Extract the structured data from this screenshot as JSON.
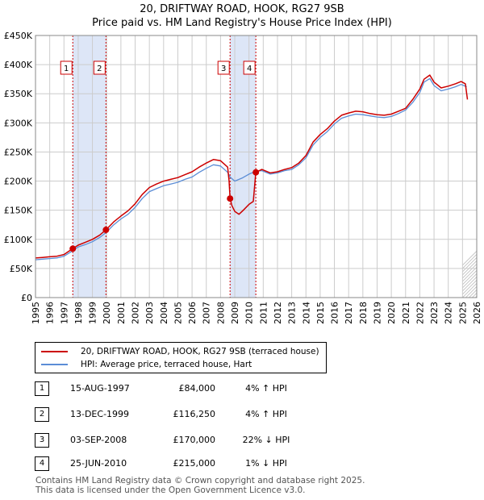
{
  "title_line1": "20, DRIFTWAY ROAD, HOOK, RG27 9SB",
  "title_line2": "Price paid vs. HM Land Registry's House Price Index (HPI)",
  "colors": {
    "property": "#cc0000",
    "hpi": "#5b8dd6",
    "shade": "#dde6f7",
    "grid": "#cccccc"
  },
  "legend": {
    "property_label": "20, DRIFTWAY ROAD, HOOK, RG27 9SB (terraced house)",
    "hpi_label": "HPI: Average price, terraced house, Hart"
  },
  "transactions": [
    {
      "num": "1",
      "date": "15-AUG-1997",
      "price": "£84,000",
      "delta": "4% ↑ HPI"
    },
    {
      "num": "2",
      "date": "13-DEC-1999",
      "price": "£116,250",
      "delta": "4% ↑ HPI"
    },
    {
      "num": "3",
      "date": "03-SEP-2008",
      "price": "£170,000",
      "delta": "22% ↓ HPI"
    },
    {
      "num": "4",
      "date": "25-JUN-2010",
      "price": "£215,000",
      "delta": "1% ↓ HPI"
    }
  ],
  "footer": {
    "line1": "Contains HM Land Registry data © Crown copyright and database right 2025.",
    "line2": "This data is licensed under the Open Government Licence v3.0."
  },
  "chart_data": {
    "type": "line",
    "title": "20, DRIFTWAY ROAD, HOOK, RG27 9SB — Price paid vs. HM Land Registry's House Price Index (HPI)",
    "xlabel": "",
    "ylabel": "",
    "xlim": [
      1995,
      2026
    ],
    "ylim": [
      0,
      450000
    ],
    "x_ticks": [
      1995,
      1996,
      1997,
      1998,
      1999,
      2000,
      2001,
      2002,
      2003,
      2004,
      2005,
      2006,
      2007,
      2008,
      2009,
      2010,
      2011,
      2012,
      2013,
      2014,
      2015,
      2016,
      2017,
      2018,
      2019,
      2020,
      2021,
      2022,
      2023,
      2024,
      2025,
      2026
    ],
    "y_ticks": [
      {
        "value": 0,
        "label": "£0"
      },
      {
        "value": 50000,
        "label": "£50K"
      },
      {
        "value": 100000,
        "label": "£100K"
      },
      {
        "value": 150000,
        "label": "£150K"
      },
      {
        "value": 200000,
        "label": "£200K"
      },
      {
        "value": 250000,
        "label": "£250K"
      },
      {
        "value": 300000,
        "label": "£300K"
      },
      {
        "value": 350000,
        "label": "£350K"
      },
      {
        "value": 400000,
        "label": "£400K"
      },
      {
        "value": 450000,
        "label": "£450K"
      }
    ],
    "grid": true,
    "shaded_periods": [
      [
        1997.62,
        1999.95
      ],
      [
        2008.67,
        2010.48
      ]
    ],
    "sale_markers": [
      {
        "label": "1",
        "x": 1997.62,
        "y": 84000
      },
      {
        "label": "2",
        "x": 1999.95,
        "y": 116250
      },
      {
        "label": "3",
        "x": 2008.67,
        "y": 170000
      },
      {
        "label": "4",
        "x": 2010.48,
        "y": 215000
      }
    ],
    "forecast_from": 2025.0,
    "series": [
      {
        "name": "HPI: Average price, terraced house, Hart",
        "x": [
          1995.0,
          1995.5,
          1996.0,
          1996.5,
          1997.0,
          1997.62,
          1998.0,
          1998.5,
          1999.0,
          1999.5,
          1999.95,
          2000.5,
          2001.0,
          2001.5,
          2002.0,
          2002.5,
          2003.0,
          2003.5,
          2004.0,
          2004.5,
          2005.0,
          2005.5,
          2006.0,
          2006.5,
          2007.0,
          2007.5,
          2008.0,
          2008.5,
          2008.67,
          2009.0,
          2009.5,
          2010.0,
          2010.48,
          2010.9,
          2011.5,
          2012.0,
          2012.5,
          2013.0,
          2013.5,
          2014.0,
          2014.5,
          2015.0,
          2015.5,
          2016.0,
          2016.5,
          2017.0,
          2017.5,
          2018.0,
          2018.5,
          2019.0,
          2019.5,
          2020.0,
          2020.5,
          2021.0,
          2021.5,
          2022.0,
          2022.3,
          2022.7,
          2023.0,
          2023.5,
          2024.0,
          2024.5,
          2024.9,
          2025.3
        ],
        "y": [
          65000,
          66000,
          67000,
          68000,
          71000,
          80500,
          87000,
          91000,
          96000,
          103000,
          111500,
          125000,
          135000,
          143000,
          155000,
          170000,
          182000,
          187000,
          192000,
          195000,
          198000,
          203000,
          207000,
          215000,
          222000,
          228000,
          226000,
          215000,
          207000,
          200000,
          205000,
          212000,
          217000,
          218000,
          212000,
          214000,
          218000,
          220000,
          228000,
          240000,
          262000,
          275000,
          285000,
          298000,
          308000,
          312000,
          315000,
          314000,
          312000,
          310000,
          309000,
          311000,
          316000,
          322000,
          335000,
          352000,
          370000,
          376000,
          364000,
          355000,
          358000,
          362000,
          366000,
          362000
        ]
      },
      {
        "name": "20, DRIFTWAY ROAD, HOOK, RG27 9SB (terraced house)",
        "x": [
          1995.0,
          1995.5,
          1996.0,
          1996.5,
          1997.0,
          1997.62,
          1998.0,
          1998.5,
          1999.0,
          1999.5,
          1999.95,
          2000.5,
          2001.0,
          2001.5,
          2002.0,
          2002.5,
          2003.0,
          2003.5,
          2004.0,
          2004.5,
          2005.0,
          2005.5,
          2006.0,
          2006.5,
          2007.0,
          2007.5,
          2008.0,
          2008.5,
          2008.6,
          2008.67,
          2008.8,
          2009.0,
          2009.3,
          2009.6,
          2010.0,
          2010.3,
          2010.48,
          2010.9,
          2011.5,
          2012.0,
          2012.5,
          2013.0,
          2013.5,
          2014.0,
          2014.5,
          2015.0,
          2015.5,
          2016.0,
          2016.5,
          2017.0,
          2017.5,
          2018.0,
          2018.5,
          2019.0,
          2019.5,
          2020.0,
          2020.5,
          2021.0,
          2021.5,
          2022.0,
          2022.3,
          2022.7,
          2023.0,
          2023.5,
          2024.0,
          2024.5,
          2024.9,
          2025.2,
          2025.35
        ],
        "y": [
          68000,
          69000,
          70000,
          71000,
          74000,
          84000,
          90000,
          95000,
          100000,
          107000,
          116250,
          130000,
          140000,
          149000,
          161000,
          177000,
          189000,
          195000,
          200000,
          203000,
          206000,
          211000,
          216000,
          224000,
          231000,
          237000,
          235000,
          224000,
          200000,
          170000,
          158000,
          148000,
          143000,
          150000,
          160000,
          165000,
          215000,
          220000,
          214000,
          216000,
          220000,
          223000,
          231000,
          244000,
          267000,
          280000,
          290000,
          303000,
          313000,
          317000,
          320000,
          319000,
          316000,
          314000,
          313000,
          315000,
          320000,
          325000,
          340000,
          358000,
          375000,
          382000,
          370000,
          360000,
          363000,
          367000,
          371000,
          367000,
          340000
        ]
      }
    ]
  }
}
